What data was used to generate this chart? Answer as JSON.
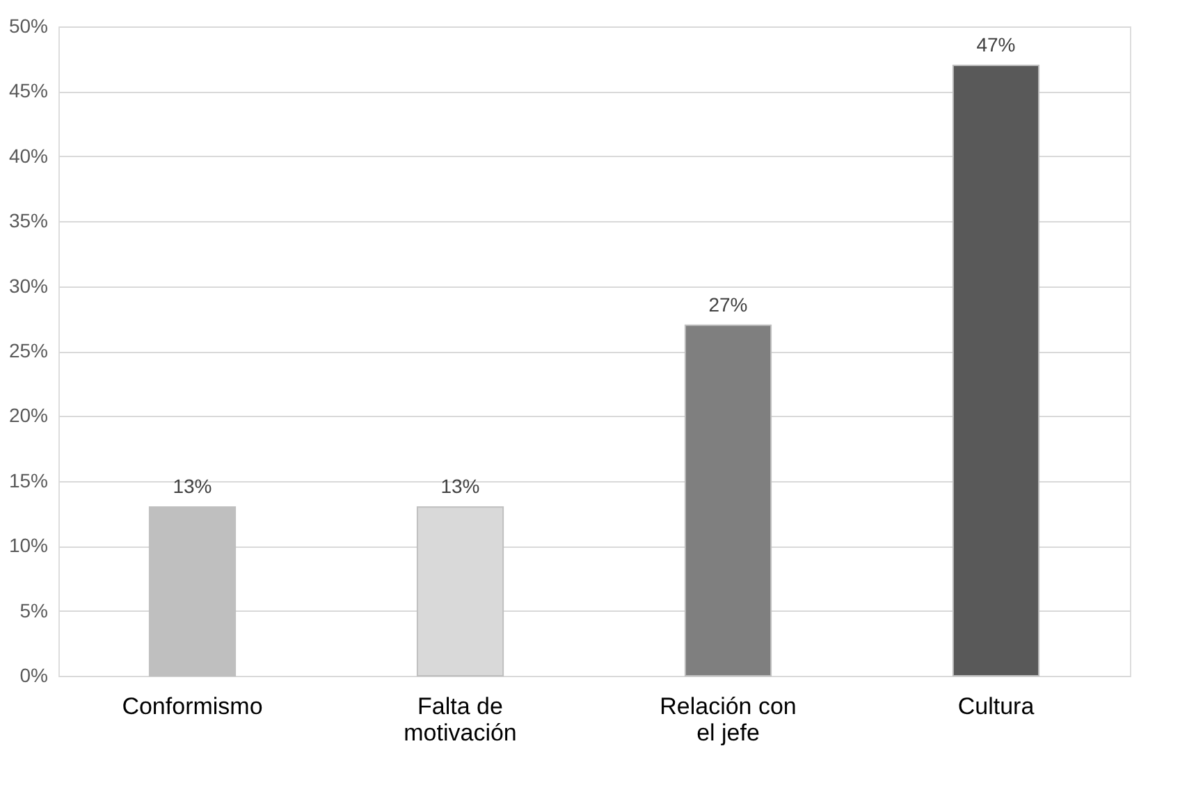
{
  "chart_data": {
    "type": "bar",
    "categories": [
      "Conformismo",
      "Falta de motivación",
      "Relación con el jefe",
      "Cultura"
    ],
    "values": [
      13,
      13,
      27,
      47
    ],
    "colors": [
      "#bfbfbf",
      "#d9d9d9",
      "#7f7f7f",
      "#595959"
    ],
    "value_labels": [
      "13%",
      "13%",
      "27%",
      "47%"
    ],
    "ylim": [
      0,
      50
    ],
    "yticks": [
      {
        "value": 0,
        "label": "0%"
      },
      {
        "value": 5,
        "label": "5%"
      },
      {
        "value": 10,
        "label": "10%"
      },
      {
        "value": 15,
        "label": "15%"
      },
      {
        "value": 20,
        "label": "20%"
      },
      {
        "value": 25,
        "label": "25%"
      },
      {
        "value": 30,
        "label": "30%"
      },
      {
        "value": 35,
        "label": "35%"
      },
      {
        "value": 40,
        "label": "40%"
      },
      {
        "value": 45,
        "label": "45%"
      },
      {
        "value": 50,
        "label": "50%"
      }
    ],
    "grid": "y"
  }
}
